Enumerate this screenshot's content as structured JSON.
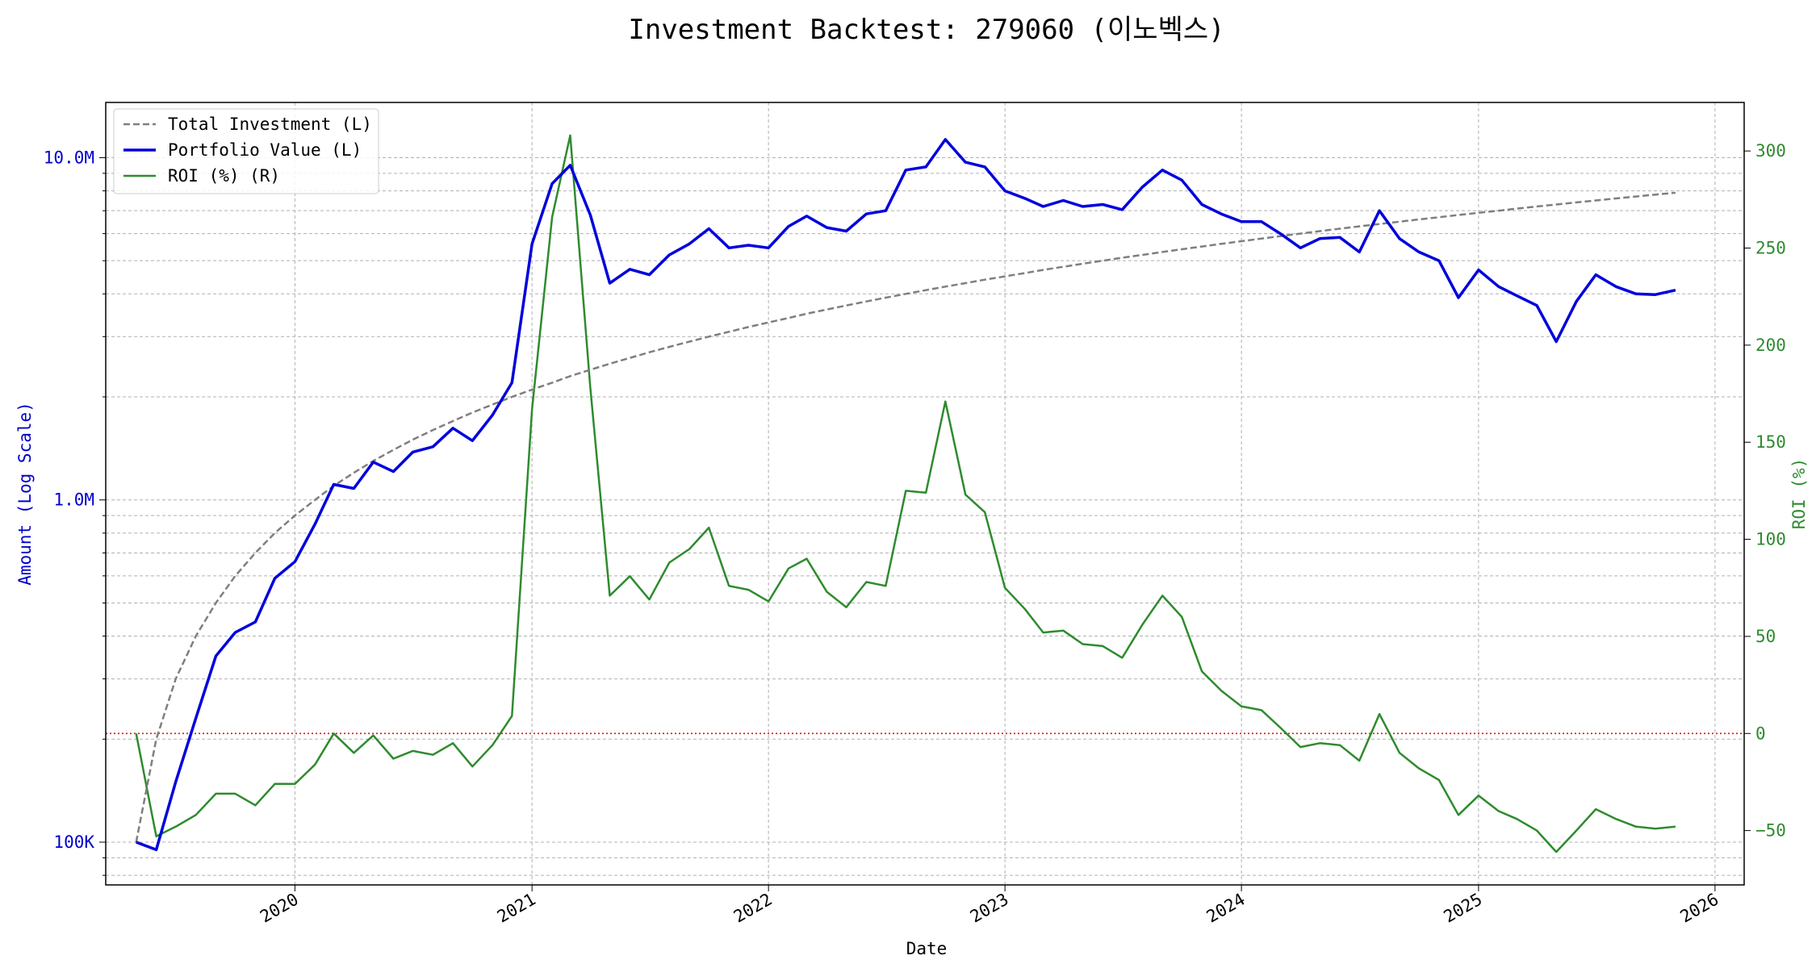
{
  "chart_data": {
    "type": "line",
    "title": "Investment Backtest: 279060 (이노벡스)",
    "xlabel": "Date",
    "ylabel_left": "Amount (Log Scale)",
    "ylabel_right": "ROI (%)",
    "left_scale": "log",
    "left_ylim": [
      75000,
      14500000
    ],
    "right_ylim": [
      -78,
      325
    ],
    "xlim": [
      "2019-03-15",
      "2026-02-15"
    ],
    "grid": true,
    "legend_position": "top-left",
    "reference_line": {
      "axis": "right",
      "value": 0,
      "color": "#d62728",
      "style": "dotted"
    },
    "x_ticks": [
      {
        "date": "2020-01-01",
        "label": "2020"
      },
      {
        "date": "2021-01-01",
        "label": "2021"
      },
      {
        "date": "2022-01-01",
        "label": "2022"
      },
      {
        "date": "2023-01-01",
        "label": "2023"
      },
      {
        "date": "2024-01-01",
        "label": "2024"
      },
      {
        "date": "2025-01-01",
        "label": "2025"
      },
      {
        "date": "2026-01-01",
        "label": "2026"
      }
    ],
    "left_ticks": [
      {
        "value": 100000,
        "label": "100K"
      },
      {
        "value": 1000000,
        "label": "1.0M"
      },
      {
        "value": 10000000,
        "label": "10.0M"
      }
    ],
    "right_ticks": [
      {
        "value": -50,
        "label": "−50"
      },
      {
        "value": 0,
        "label": "0"
      },
      {
        "value": 50,
        "label": "50"
      },
      {
        "value": 100,
        "label": "100"
      },
      {
        "value": 150,
        "label": "150"
      },
      {
        "value": 200,
        "label": "200"
      },
      {
        "value": 250,
        "label": "250"
      },
      {
        "value": 300,
        "label": "300"
      }
    ],
    "dates": [
      "2019-05-01",
      "2019-06-01",
      "2019-07-01",
      "2019-08-01",
      "2019-09-01",
      "2019-10-01",
      "2019-11-01",
      "2019-12-01",
      "2020-01-01",
      "2020-02-01",
      "2020-03-01",
      "2020-04-01",
      "2020-05-01",
      "2020-06-01",
      "2020-07-01",
      "2020-08-01",
      "2020-09-01",
      "2020-10-01",
      "2020-11-01",
      "2020-12-01",
      "2021-01-01",
      "2021-02-01",
      "2021-03-01",
      "2021-04-01",
      "2021-05-01",
      "2021-06-01",
      "2021-07-01",
      "2021-08-01",
      "2021-09-01",
      "2021-10-01",
      "2021-11-01",
      "2021-12-01",
      "2022-01-01",
      "2022-02-01",
      "2022-03-01",
      "2022-04-01",
      "2022-05-01",
      "2022-06-01",
      "2022-07-01",
      "2022-08-01",
      "2022-09-01",
      "2022-10-01",
      "2022-11-01",
      "2022-12-01",
      "2023-01-01",
      "2023-02-01",
      "2023-03-01",
      "2023-04-01",
      "2023-05-01",
      "2023-06-01",
      "2023-07-01",
      "2023-08-01",
      "2023-09-01",
      "2023-10-01",
      "2023-11-01",
      "2023-12-01",
      "2024-01-01",
      "2024-02-01",
      "2024-03-01",
      "2024-04-01",
      "2024-05-01",
      "2024-06-01",
      "2024-07-01",
      "2024-08-01",
      "2024-09-01",
      "2024-10-01",
      "2024-11-01",
      "2024-12-01",
      "2025-01-01",
      "2025-02-01",
      "2025-03-01",
      "2025-04-01",
      "2025-05-01",
      "2025-06-01",
      "2025-07-01",
      "2025-08-01",
      "2025-09-01",
      "2025-10-01",
      "2025-11-01"
    ],
    "series": [
      {
        "name": "Total Investment (L)",
        "axis": "left",
        "color": "#7f7f7f",
        "style": "dashed",
        "values": [
          100000,
          200000,
          300000,
          400000,
          500000,
          600000,
          700000,
          800000,
          900000,
          1000000,
          1100000,
          1200000,
          1300000,
          1400000,
          1500000,
          1600000,
          1700000,
          1800000,
          1900000,
          2000000,
          2100000,
          2200000,
          2300000,
          2400000,
          2500000,
          2600000,
          2700000,
          2800000,
          2900000,
          3000000,
          3100000,
          3200000,
          3300000,
          3400000,
          3500000,
          3600000,
          3700000,
          3800000,
          3900000,
          4000000,
          4100000,
          4200000,
          4300000,
          4400000,
          4500000,
          4600000,
          4700000,
          4800000,
          4900000,
          5000000,
          5100000,
          5200000,
          5300000,
          5400000,
          5500000,
          5600000,
          5700000,
          5800000,
          5900000,
          6000000,
          6100000,
          6200000,
          6300000,
          6400000,
          6500000,
          6600000,
          6700000,
          6800000,
          6900000,
          7000000,
          7100000,
          7200000,
          7300000,
          7400000,
          7500000,
          7600000,
          7700000,
          7800000,
          7900000
        ]
      },
      {
        "name": "Portfolio Value (L)",
        "axis": "left",
        "color": "#0000dd",
        "style": "solid",
        "values": [
          100000,
          95000,
          150000,
          230000,
          350000,
          410000,
          440000,
          590000,
          660000,
          850000,
          1110000,
          1080000,
          1290000,
          1210000,
          1380000,
          1430000,
          1620000,
          1490000,
          1770000,
          2200000,
          5600000,
          8400000,
          9500000,
          6800000,
          4300000,
          4720000,
          4550000,
          5200000,
          5600000,
          6200000,
          5450000,
          5550000,
          5450000,
          6300000,
          6750000,
          6250000,
          6100000,
          6850000,
          7000000,
          9200000,
          9400000,
          11300000,
          9700000,
          9400000,
          8000000,
          7600000,
          7200000,
          7500000,
          7200000,
          7300000,
          7050000,
          8200000,
          9200000,
          8600000,
          7300000,
          6850000,
          6500000,
          6500000,
          6000000,
          5450000,
          5800000,
          5850000,
          5300000,
          7000000,
          5800000,
          5300000,
          5000000,
          3900000,
          4700000,
          4200000,
          3950000,
          3700000,
          2900000,
          3800000,
          4550000,
          4200000,
          4000000,
          3980000,
          4100000
        ]
      },
      {
        "name": "ROI (%) (R)",
        "axis": "right",
        "color": "#2e8b2e",
        "style": "solid",
        "values": [
          0,
          -53,
          -48,
          -42,
          -31,
          -31,
          -37,
          -26,
          -26,
          -16,
          0,
          -10,
          -1,
          -13,
          -9,
          -11,
          -5,
          -17,
          -6,
          9,
          167,
          266,
          308,
          178,
          71,
          81,
          69,
          88,
          95,
          106,
          76,
          74,
          68,
          85,
          90,
          73,
          65,
          78,
          76,
          125,
          124,
          171,
          123,
          114,
          75,
          64,
          52,
          53,
          46,
          45,
          39,
          56,
          71,
          60,
          32,
          22,
          14,
          12,
          3,
          -7,
          -5,
          -6,
          -14,
          10,
          -10,
          -18,
          -24,
          -42,
          -32,
          -40,
          -44,
          -50,
          -61,
          -50,
          -39,
          -44,
          -48,
          -49,
          -48
        ]
      }
    ]
  }
}
